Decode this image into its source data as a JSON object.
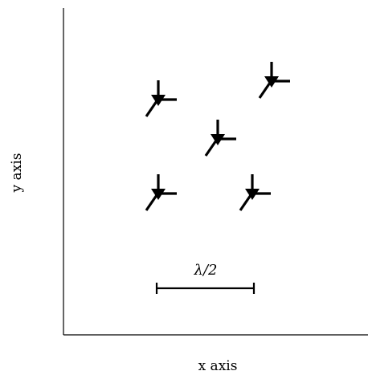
{
  "axes": {
    "x_label": "x axis",
    "y_label": "y axis"
  },
  "scale_bar": {
    "label": "λ/2"
  },
  "markers": [
    {
      "id": "upper-left"
    },
    {
      "id": "upper-right"
    },
    {
      "id": "center"
    },
    {
      "id": "lower-left"
    },
    {
      "id": "lower-right"
    }
  ]
}
